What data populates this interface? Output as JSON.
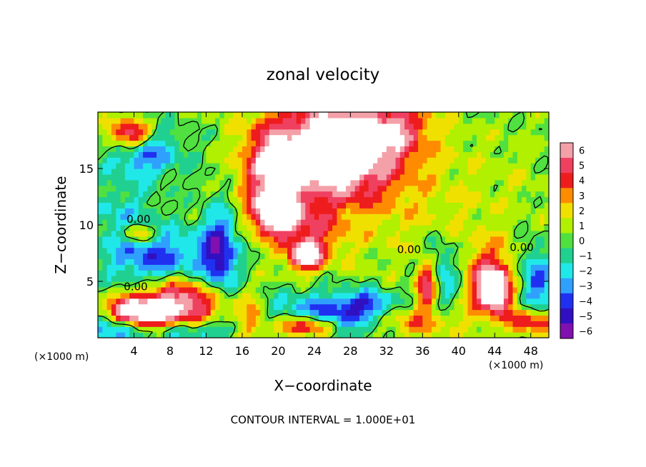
{
  "chart_data": {
    "type": "heatmap",
    "title": "zonal velocity",
    "xlabel": "X−coordinate",
    "ylabel": "Z−coordinate",
    "x_unit_left": "(×1000 m)",
    "x_unit_right": "(×1000 m)",
    "footer": "CONTOUR INTERVAL = 1.000E+01",
    "xlim": [
      0,
      50
    ],
    "ylim": [
      0,
      20
    ],
    "x_ticks": [
      4,
      8,
      12,
      16,
      20,
      24,
      28,
      32,
      36,
      40,
      44,
      48
    ],
    "y_ticks": [
      5,
      10,
      15
    ],
    "colorbar": {
      "levels": [
        6,
        5,
        4,
        3,
        2,
        1,
        0,
        -1,
        -2,
        -3,
        -4,
        -5,
        -6
      ],
      "colors": [
        "#f4a0a8",
        "#f04060",
        "#ee1c1c",
        "#ff8c00",
        "#f0e000",
        "#b0f000",
        "#50e040",
        "#20d090",
        "#20e8e8",
        "#30a0ff",
        "#2030f0",
        "#3010c0",
        "#8010b0"
      ]
    },
    "contour_labels": [
      {
        "text": "0.00",
        "x": 4.5,
        "z": 10.2
      },
      {
        "text": "0.00",
        "x": 4.2,
        "z": 4.2
      },
      {
        "text": "0.00",
        "x": 34.5,
        "z": 7.5
      },
      {
        "text": "0.00",
        "x": 47.0,
        "z": 7.7
      }
    ],
    "blobs": [
      {
        "x": 26,
        "z": 16.5,
        "rx": 7.0,
        "rz": 4.5,
        "v": 9
      },
      {
        "x": 33,
        "z": 18.5,
        "rx": 4.0,
        "rz": 2.5,
        "v": 3.5
      },
      {
        "x": 19,
        "z": 14,
        "rx": 3.0,
        "rz": 4.5,
        "v": 4.5
      },
      {
        "x": 20,
        "z": 11,
        "rx": 2.5,
        "rz": 1.6,
        "v": 7
      },
      {
        "x": 24,
        "z": 9,
        "rx": 3.5,
        "rz": 2.5,
        "v": 3
      },
      {
        "x": 23,
        "z": 7.3,
        "rx": 1.8,
        "rz": 1.2,
        "v": 7
      },
      {
        "x": 36,
        "z": 11,
        "rx": 8.0,
        "rz": 7.0,
        "v": 1.2
      },
      {
        "x": 46,
        "z": 14,
        "rx": 6.0,
        "rz": 6.0,
        "v": 0.5
      },
      {
        "x": 5,
        "z": 16.5,
        "rx": 4.0,
        "rz": 2.2,
        "v": -4.5
      },
      {
        "x": 3.5,
        "z": 18,
        "rx": 2.5,
        "rz": 1.4,
        "v": 7
      },
      {
        "x": 6.5,
        "z": 7,
        "rx": 5.5,
        "rz": 2.5,
        "v": -4.5
      },
      {
        "x": 2.5,
        "z": 11,
        "rx": 4.0,
        "rz": 2.5,
        "v": -2
      },
      {
        "x": 13.5,
        "z": 7.5,
        "rx": 2.0,
        "rz": 4.0,
        "v": -5.5
      },
      {
        "x": 4.5,
        "z": 9.3,
        "rx": 1.6,
        "rz": 0.8,
        "v": 5
      },
      {
        "x": 9,
        "z": 3,
        "rx": 5.0,
        "rz": 2.4,
        "v": 7
      },
      {
        "x": 4,
        "z": 2.2,
        "rx": 3.0,
        "rz": 1.2,
        "v": 8
      },
      {
        "x": 2,
        "z": 0.8,
        "rx": 3.0,
        "rz": 1.2,
        "v": -5
      },
      {
        "x": 10.5,
        "z": 0.7,
        "rx": 4.5,
        "rz": 0.9,
        "v": -4.5
      },
      {
        "x": 17,
        "z": 1.5,
        "rx": 1.8,
        "rz": 2.0,
        "v": 3
      },
      {
        "x": 25,
        "z": 1.8,
        "rx": 6.0,
        "rz": 2.0,
        "v": -5
      },
      {
        "x": 23,
        "z": 1.0,
        "rx": 3.5,
        "rz": 1.0,
        "v": 8
      },
      {
        "x": 37.5,
        "z": 5.5,
        "rx": 2.5,
        "rz": 3.0,
        "v": -5
      },
      {
        "x": 36.5,
        "z": 5.0,
        "rx": 1.3,
        "rz": 2.2,
        "v": 9
      },
      {
        "x": 43.5,
        "z": 5.0,
        "rx": 3.0,
        "rz": 3.0,
        "v": 5
      },
      {
        "x": 44,
        "z": 4.2,
        "rx": 1.3,
        "rz": 1.4,
        "v": 9
      },
      {
        "x": 48.5,
        "z": 5.0,
        "rx": 2.0,
        "rz": 3.0,
        "v": -4.5
      },
      {
        "x": 48,
        "z": 1.5,
        "rx": 2.5,
        "rz": 1.2,
        "v": 5
      },
      {
        "x": 35,
        "z": 1.5,
        "rx": 5.0,
        "rz": 1.4,
        "v": 3
      },
      {
        "x": 30,
        "z": 3,
        "rx": 3.0,
        "rz": 1.2,
        "v": -4
      }
    ]
  }
}
